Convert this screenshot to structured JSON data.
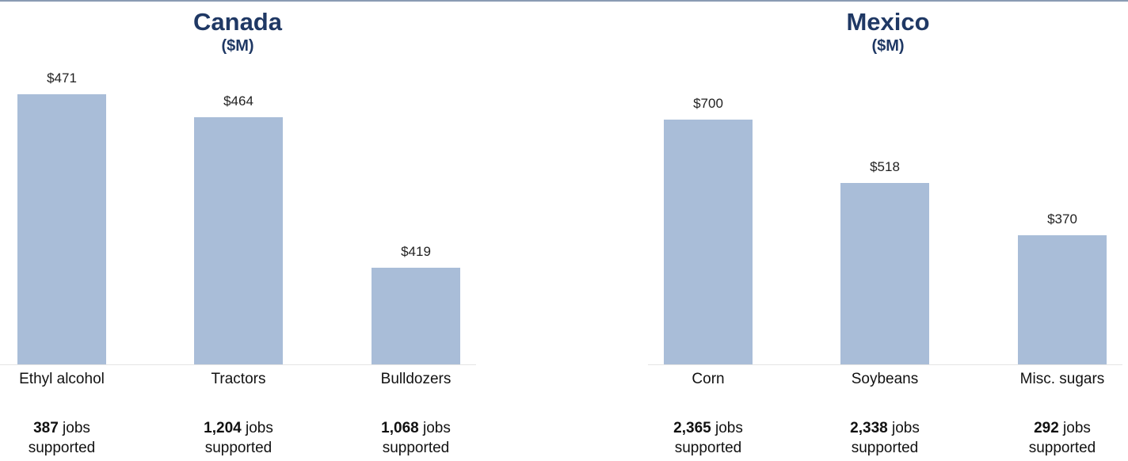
{
  "chart_data": [
    {
      "type": "bar",
      "title": "Canada",
      "subtitle": "($M)",
      "unit_prefix": "$",
      "categories": [
        "Ethyl alcohol",
        "Tractors",
        "Bulldozers"
      ],
      "values": [
        471,
        464,
        419
      ],
      "value_labels": [
        "$471",
        "$464",
        "$419"
      ],
      "jobs": [
        {
          "count": "387",
          "line1": " jobs",
          "line2": "supported"
        },
        {
          "count": "1,204",
          "line1": " jobs",
          "line2": "supported"
        },
        {
          "count": "1,068",
          "line1": " jobs",
          "line2": "supported"
        }
      ],
      "ylim": [
        400,
        480
      ]
    },
    {
      "type": "bar",
      "title": "Mexico",
      "subtitle": "($M)",
      "unit_prefix": "$",
      "categories": [
        "Corn",
        "Soybeans",
        "Misc. sugars"
      ],
      "values": [
        700,
        518,
        370
      ],
      "value_labels": [
        "$700",
        "$518",
        "$370"
      ],
      "jobs": [
        {
          "count": "2,365",
          "line1": " jobs",
          "line2": "supported"
        },
        {
          "count": "2,338",
          "line1": " jobs",
          "line2": "supported"
        },
        {
          "count": "292",
          "line1": " jobs",
          "line2": "supported"
        }
      ],
      "ylim": [
        0,
        800
      ]
    }
  ]
}
